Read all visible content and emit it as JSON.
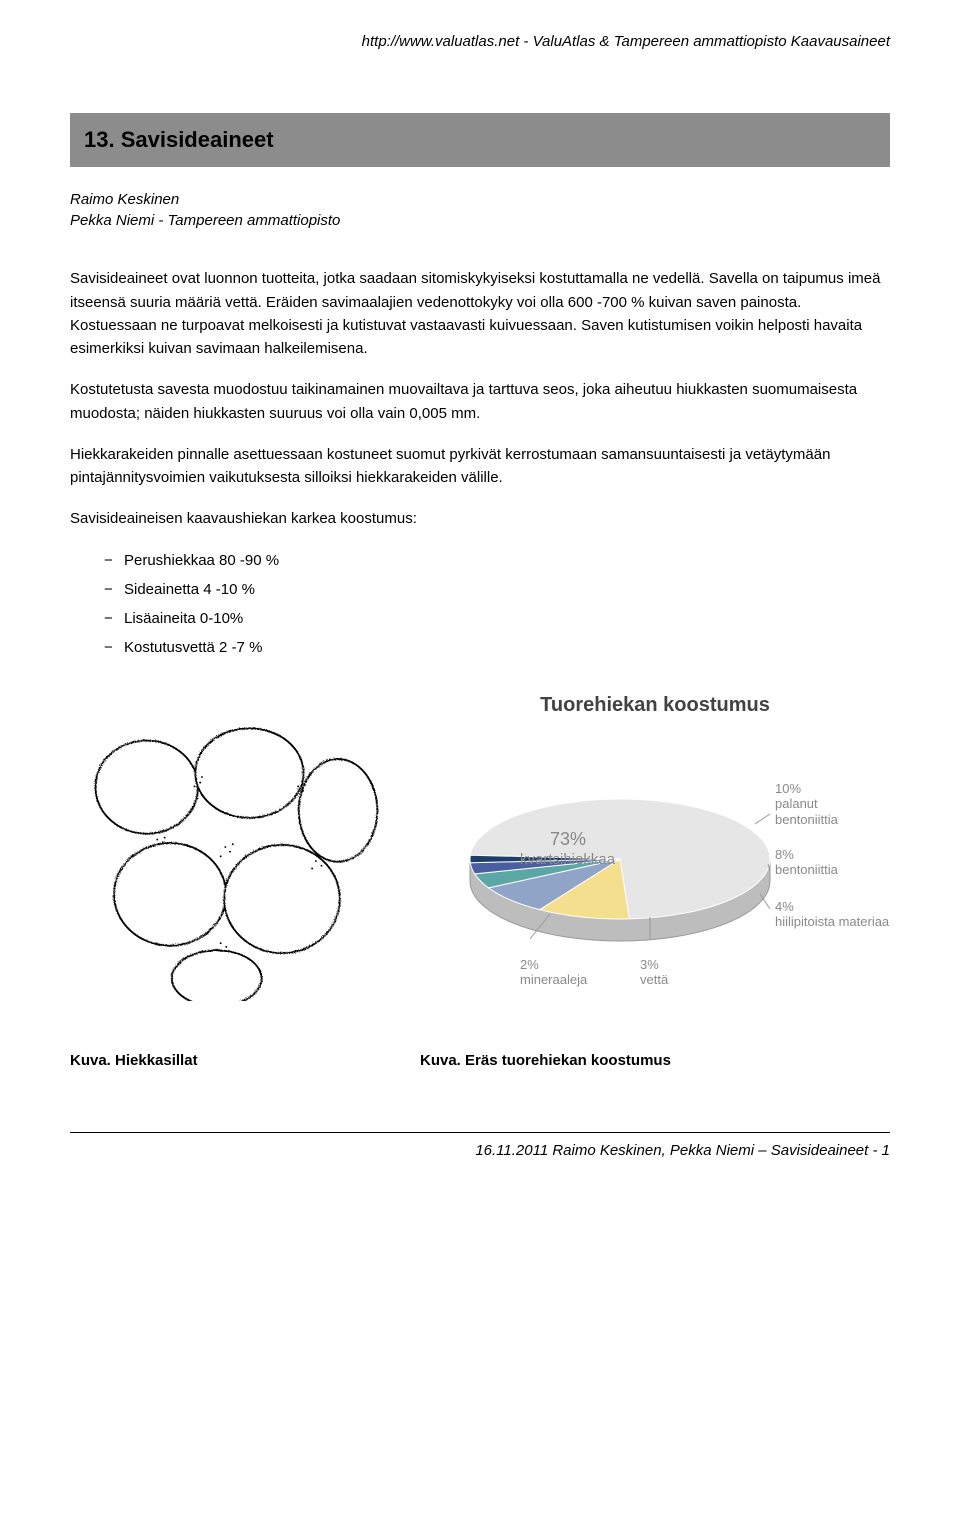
{
  "header": {
    "url": "http://www.valuatlas.net - ValuAtlas & Tampereen ammattiopisto Kaavausaineet"
  },
  "title": "13. Savisideaineet",
  "authors": {
    "line1": "Raimo Keskinen",
    "line2": "Pekka Niemi - Tampereen ammattiopisto"
  },
  "paragraphs": {
    "p1": "Savisideaineet ovat luonnon tuotteita, jotka saadaan sitomiskykyiseksi kostuttamalla ne vedellä. Savella on taipumus imeä itseensä suuria määriä vettä. Eräiden savimaalajien vedenottokyky voi olla 600 -700 % kuivan saven painosta. Kostuessaan ne turpoavat melkoisesti ja kutistuvat vastaavasti kuivuessaan. Saven kutistumisen voikin helposti havaita esimerkiksi kuivan savimaan halkeilemisena.",
    "p2": "Kostutetusta savesta muodostuu taikinamainen muovailtava ja tarttuva seos, joka aiheutuu hiukkasten suomumaisesta muodosta; näiden hiukkasten suuruus voi olla vain 0,005 mm.",
    "p3": "Hiekkarakeiden pinnalle asettuessaan kostuneet suomut pyrkivät kerrostumaan samansuuntaisesti ja vetäytymään pintajännitysvoimien vaikutuksesta silloiksi hiekkarakeiden välille.",
    "p4": "Savisideaineisen kaavaushiekan karkea koostumus:"
  },
  "list": {
    "i1": "Perushiekkaa 80 -90 %",
    "i2": "Sideainetta 4 -10 %",
    "i3": "Lisäaineita 0-10%",
    "i4": "Kostutusvettä 2 -7 %"
  },
  "pie": {
    "title": "Tuorehiekan koostumus",
    "center_label_pct": "73%",
    "center_label_txt": "kvartsihiekkaa",
    "slices": [
      {
        "label": "10%\npalanut\nbentoniittia",
        "value": 10,
        "color": "#f4df8e"
      },
      {
        "label": "8%\nbentoniittia",
        "value": 8,
        "color": "#8fa4c7"
      },
      {
        "label": "4%\nhiilipitoista materiaa",
        "value": 4,
        "color": "#5da6a6"
      },
      {
        "label": "3%\nvettä",
        "value": 3,
        "color": "#4a5ea0"
      },
      {
        "label": "2%\nmineraaleja",
        "value": 2,
        "color": "#1f3d6b"
      }
    ],
    "main_slice": {
      "value": 73,
      "color": "#e6e6e6"
    },
    "colors": {
      "title": "#424242",
      "label": "#8a8a8a",
      "background": "#ffffff"
    }
  },
  "captions": {
    "left": "Kuva. Hiekkasillat",
    "right": "Kuva. Eräs tuorehiekan koostumus"
  },
  "footer": "16.11.2011 Raimo Keskinen, Pekka Niemi – Savisideaineet - 1"
}
